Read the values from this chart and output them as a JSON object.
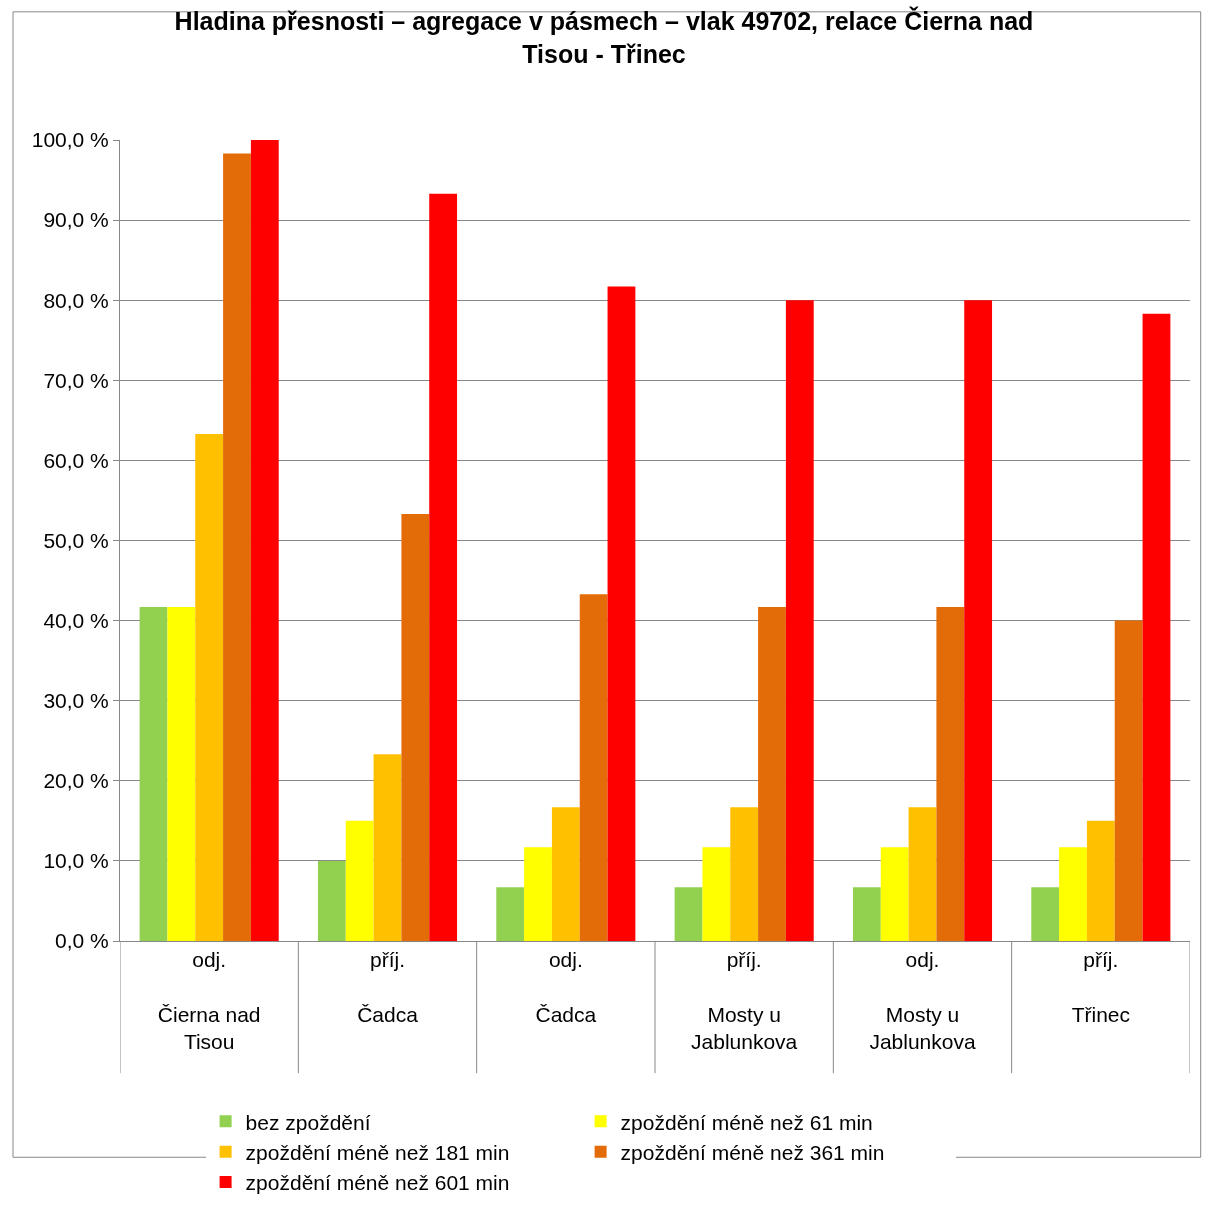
{
  "chart_data": {
    "type": "bar",
    "title": "Hladina přesnosti – agregace v pásmech – vlak 49702, relace Čierna nad\nTisou - Třinec",
    "categories": [
      "odj.\n\nČierna nad\nTisou",
      "příj.\n\nČadca",
      "odj.\n\nČadca",
      "příj.\n\nMosty u\nJablunkova",
      "odj.\n\nMosty u\nJablunkova",
      "příj.\n\nTřinec"
    ],
    "series": [
      {
        "name": "bez zpoždění",
        "color": "#92d050",
        "values": [
          41.7,
          10.0,
          6.7,
          6.7,
          6.7,
          6.7
        ]
      },
      {
        "name": "zpoždění méně než 61 min",
        "color": "#ffff00",
        "values": [
          41.7,
          15.0,
          11.7,
          11.7,
          11.7,
          11.7
        ]
      },
      {
        "name": "zpoždění méně než 181 min",
        "color": "#ffc000",
        "values": [
          63.3,
          23.3,
          16.7,
          16.7,
          16.7,
          15.0
        ]
      },
      {
        "name": "zpoždění méně než 361 min",
        "color": "#e36c09",
        "values": [
          98.3,
          53.3,
          43.3,
          41.7,
          41.7,
          40.0
        ]
      },
      {
        "name": "zpoždění méně než 601 min",
        "color": "#ff0000",
        "values": [
          100.0,
          93.3,
          81.7,
          80.0,
          80.0,
          78.3
        ]
      }
    ],
    "ylim": [
      0,
      100
    ],
    "yticks": [
      {
        "value": 0,
        "label": "0,0 %"
      },
      {
        "value": 10,
        "label": "10,0 %"
      },
      {
        "value": 20,
        "label": "20,0 %"
      },
      {
        "value": 30,
        "label": "30,0 %"
      },
      {
        "value": 40,
        "label": "40,0 %"
      },
      {
        "value": 50,
        "label": "50,0 %"
      },
      {
        "value": 60,
        "label": "60,0 %"
      },
      {
        "value": 70,
        "label": "70,0 %"
      },
      {
        "value": 80,
        "label": "80,0 %"
      },
      {
        "value": 90,
        "label": "90,0 %"
      },
      {
        "value": 100,
        "label": "100,0 %"
      }
    ],
    "grid": "y",
    "legend": "bottom"
  }
}
